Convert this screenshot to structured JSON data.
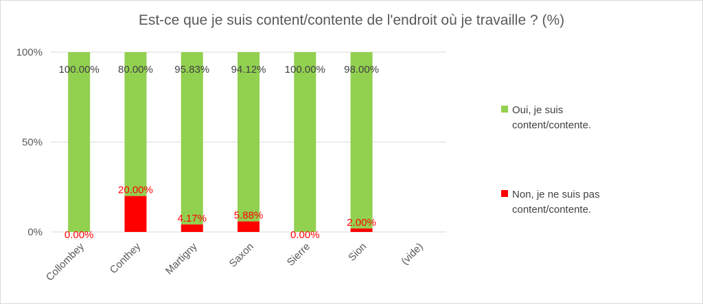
{
  "chart_data": {
    "type": "bar",
    "stacked": true,
    "title": "Est-ce que je suis content/contente de l'endroit où je travaille ? (%)",
    "categories": [
      "Collombey",
      "Conthey",
      "Martigny",
      "Saxon",
      "Sierre",
      "Sion",
      "(vide)"
    ],
    "series": [
      {
        "name": "Non, je ne suis pas content/contente.",
        "color": "#ff0000",
        "values": [
          0,
          20,
          4.17,
          5.88,
          0,
          2,
          null
        ],
        "labels": [
          "0.00%",
          "20.00%",
          "4.17%",
          "5.88%",
          "0.00%",
          "2.00%",
          ""
        ]
      },
      {
        "name": "Oui, je suis content/contente.",
        "color": "#92d050",
        "values": [
          100,
          80,
          95.83,
          94.12,
          100,
          98,
          null
        ],
        "labels": [
          "100.00%",
          "80.00%",
          "95.83%",
          "94.12%",
          "100.00%",
          "98.00%",
          ""
        ]
      }
    ],
    "ylim": [
      0,
      100
    ],
    "yticks": [
      "0%",
      "50%",
      "100%"
    ],
    "grid": true,
    "legend": "right"
  }
}
